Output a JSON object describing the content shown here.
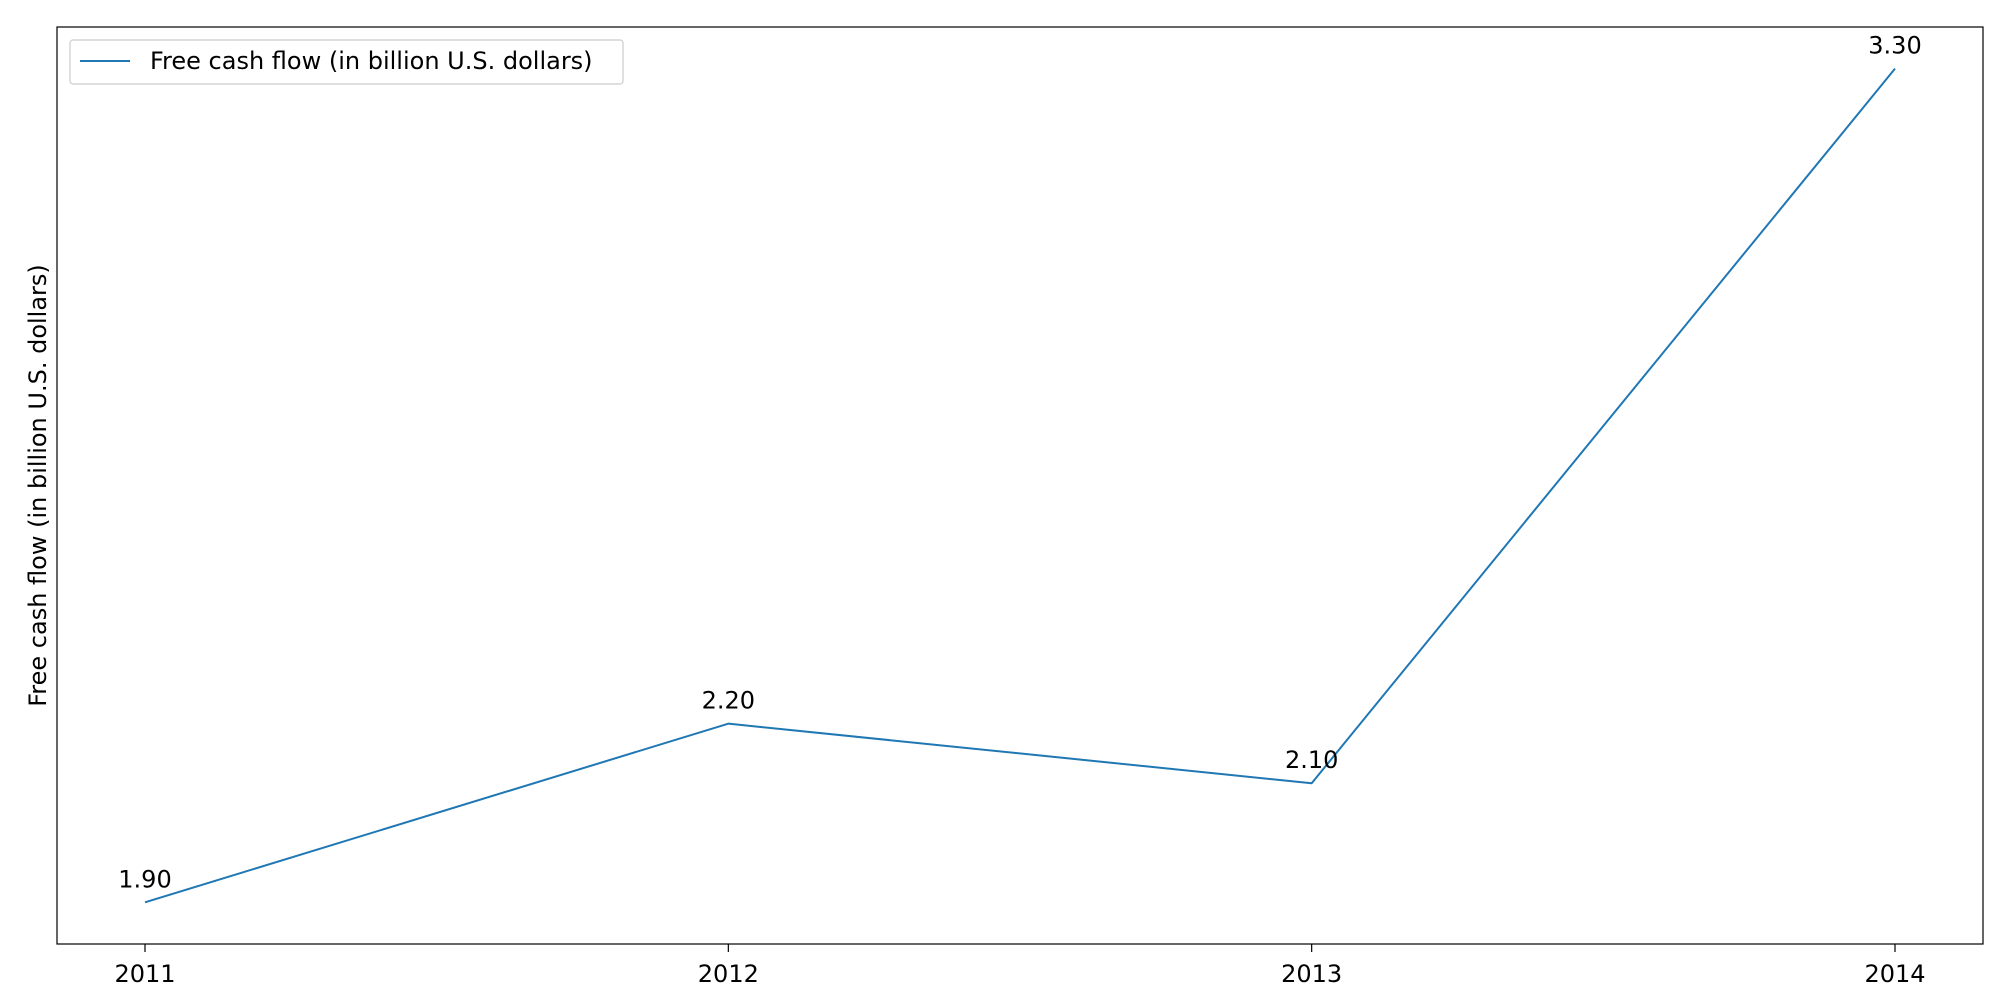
{
  "chart_data": {
    "type": "line",
    "x": [
      "2011",
      "2012",
      "2013",
      "2014"
    ],
    "series": [
      {
        "name": "Free cash flow (in billion U.S. dollars)",
        "values": [
          1.9,
          2.2,
          2.1,
          3.3
        ],
        "color": "#1f77b4"
      }
    ],
    "data_labels": [
      "1.90",
      "2.20",
      "2.10",
      "3.30"
    ],
    "title": "",
    "xlabel": "",
    "ylabel": "Free cash flow (in billion U.S. dollars)",
    "ylim": [
      1.83,
      3.37
    ],
    "y_ticks_shown": false,
    "grid": false,
    "legend_position": "top-left"
  }
}
